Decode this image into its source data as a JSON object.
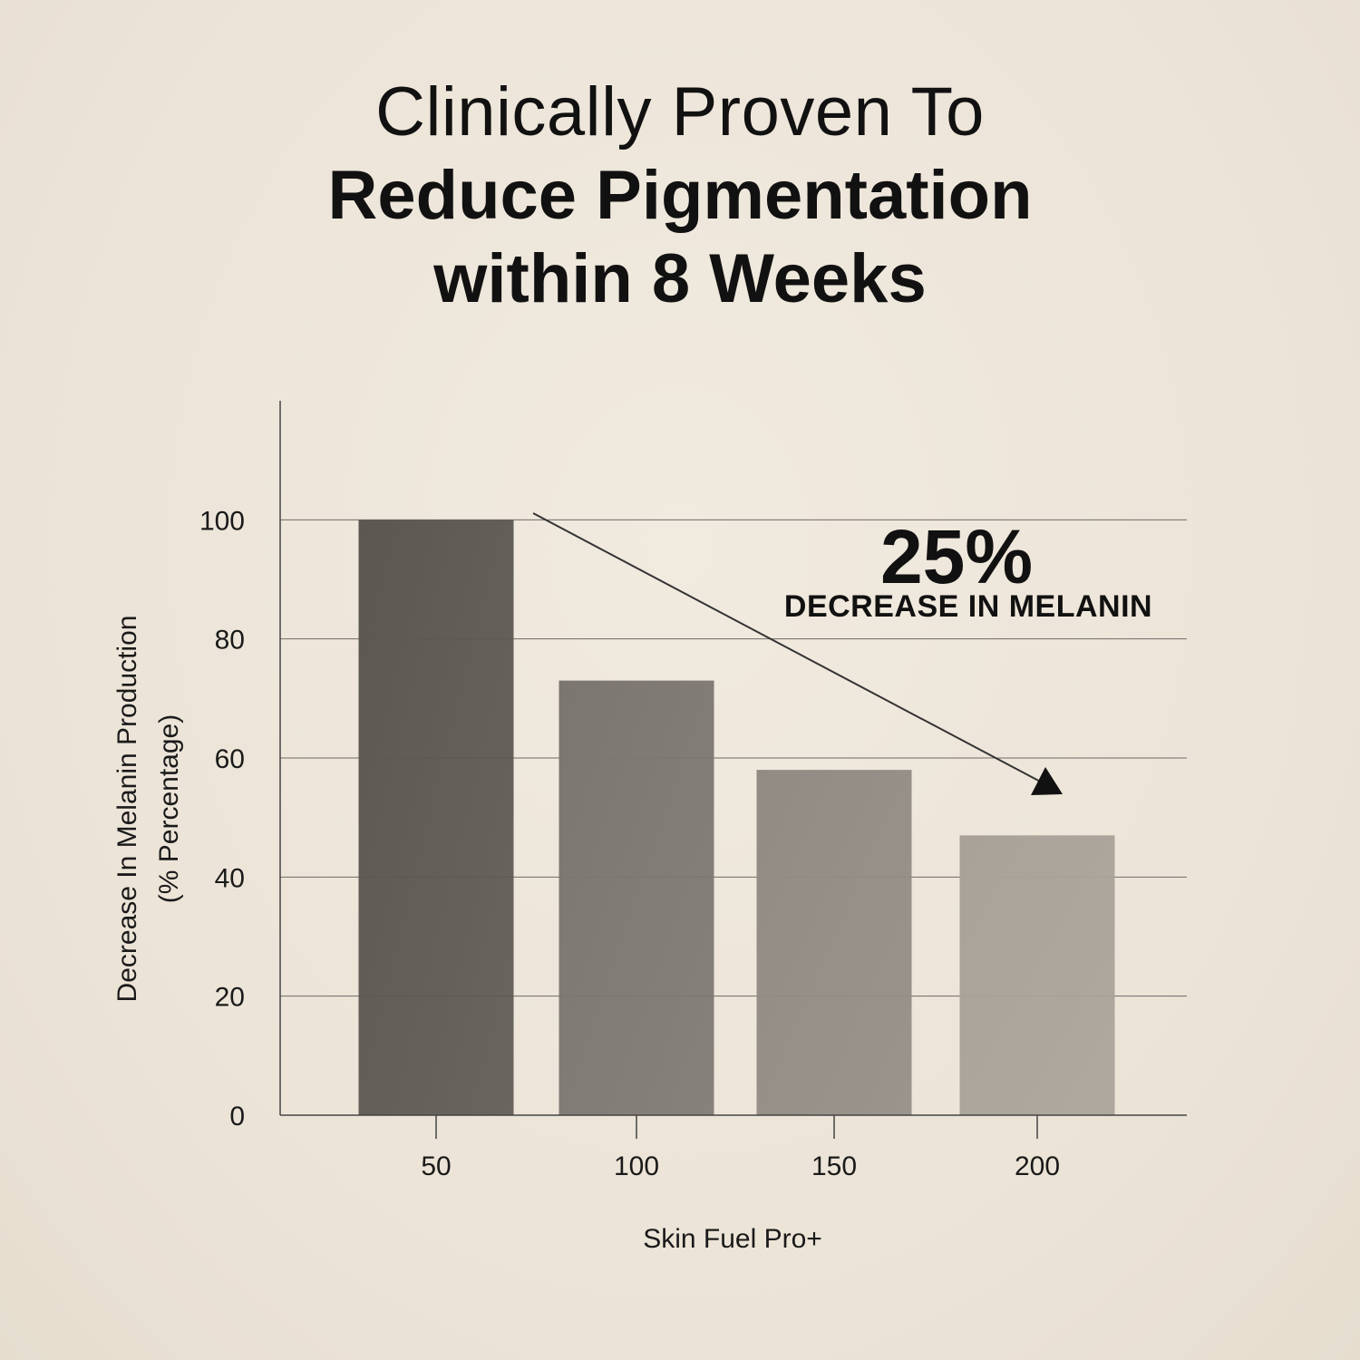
{
  "headline": {
    "line1": "Clinically Proven To",
    "line2": "Reduce Pigmentation",
    "line3": "within 8 Weeks"
  },
  "chart_data": {
    "type": "bar",
    "categories": [
      "50",
      "100",
      "150",
      "200"
    ],
    "values": [
      100,
      73,
      58,
      47
    ],
    "ylim": [
      0,
      120
    ],
    "yticks": [
      "0",
      "20",
      "40",
      "60",
      "80",
      "100"
    ],
    "ylabel_line1": "Decrease In Melanin Production",
    "ylabel_line2": "(% Percentage)",
    "xlabel": "Skin Fuel Pro+",
    "grid": true,
    "bar_colors": [
      "#5b5751",
      "#7b7670",
      "#918b84",
      "#a8a298"
    ],
    "annotation": {
      "big": "25%",
      "small": "DECREASE IN MELANIN"
    }
  },
  "colors": {
    "background": "#eee6d9",
    "text": "#111111",
    "grid": "#6d6a66"
  }
}
